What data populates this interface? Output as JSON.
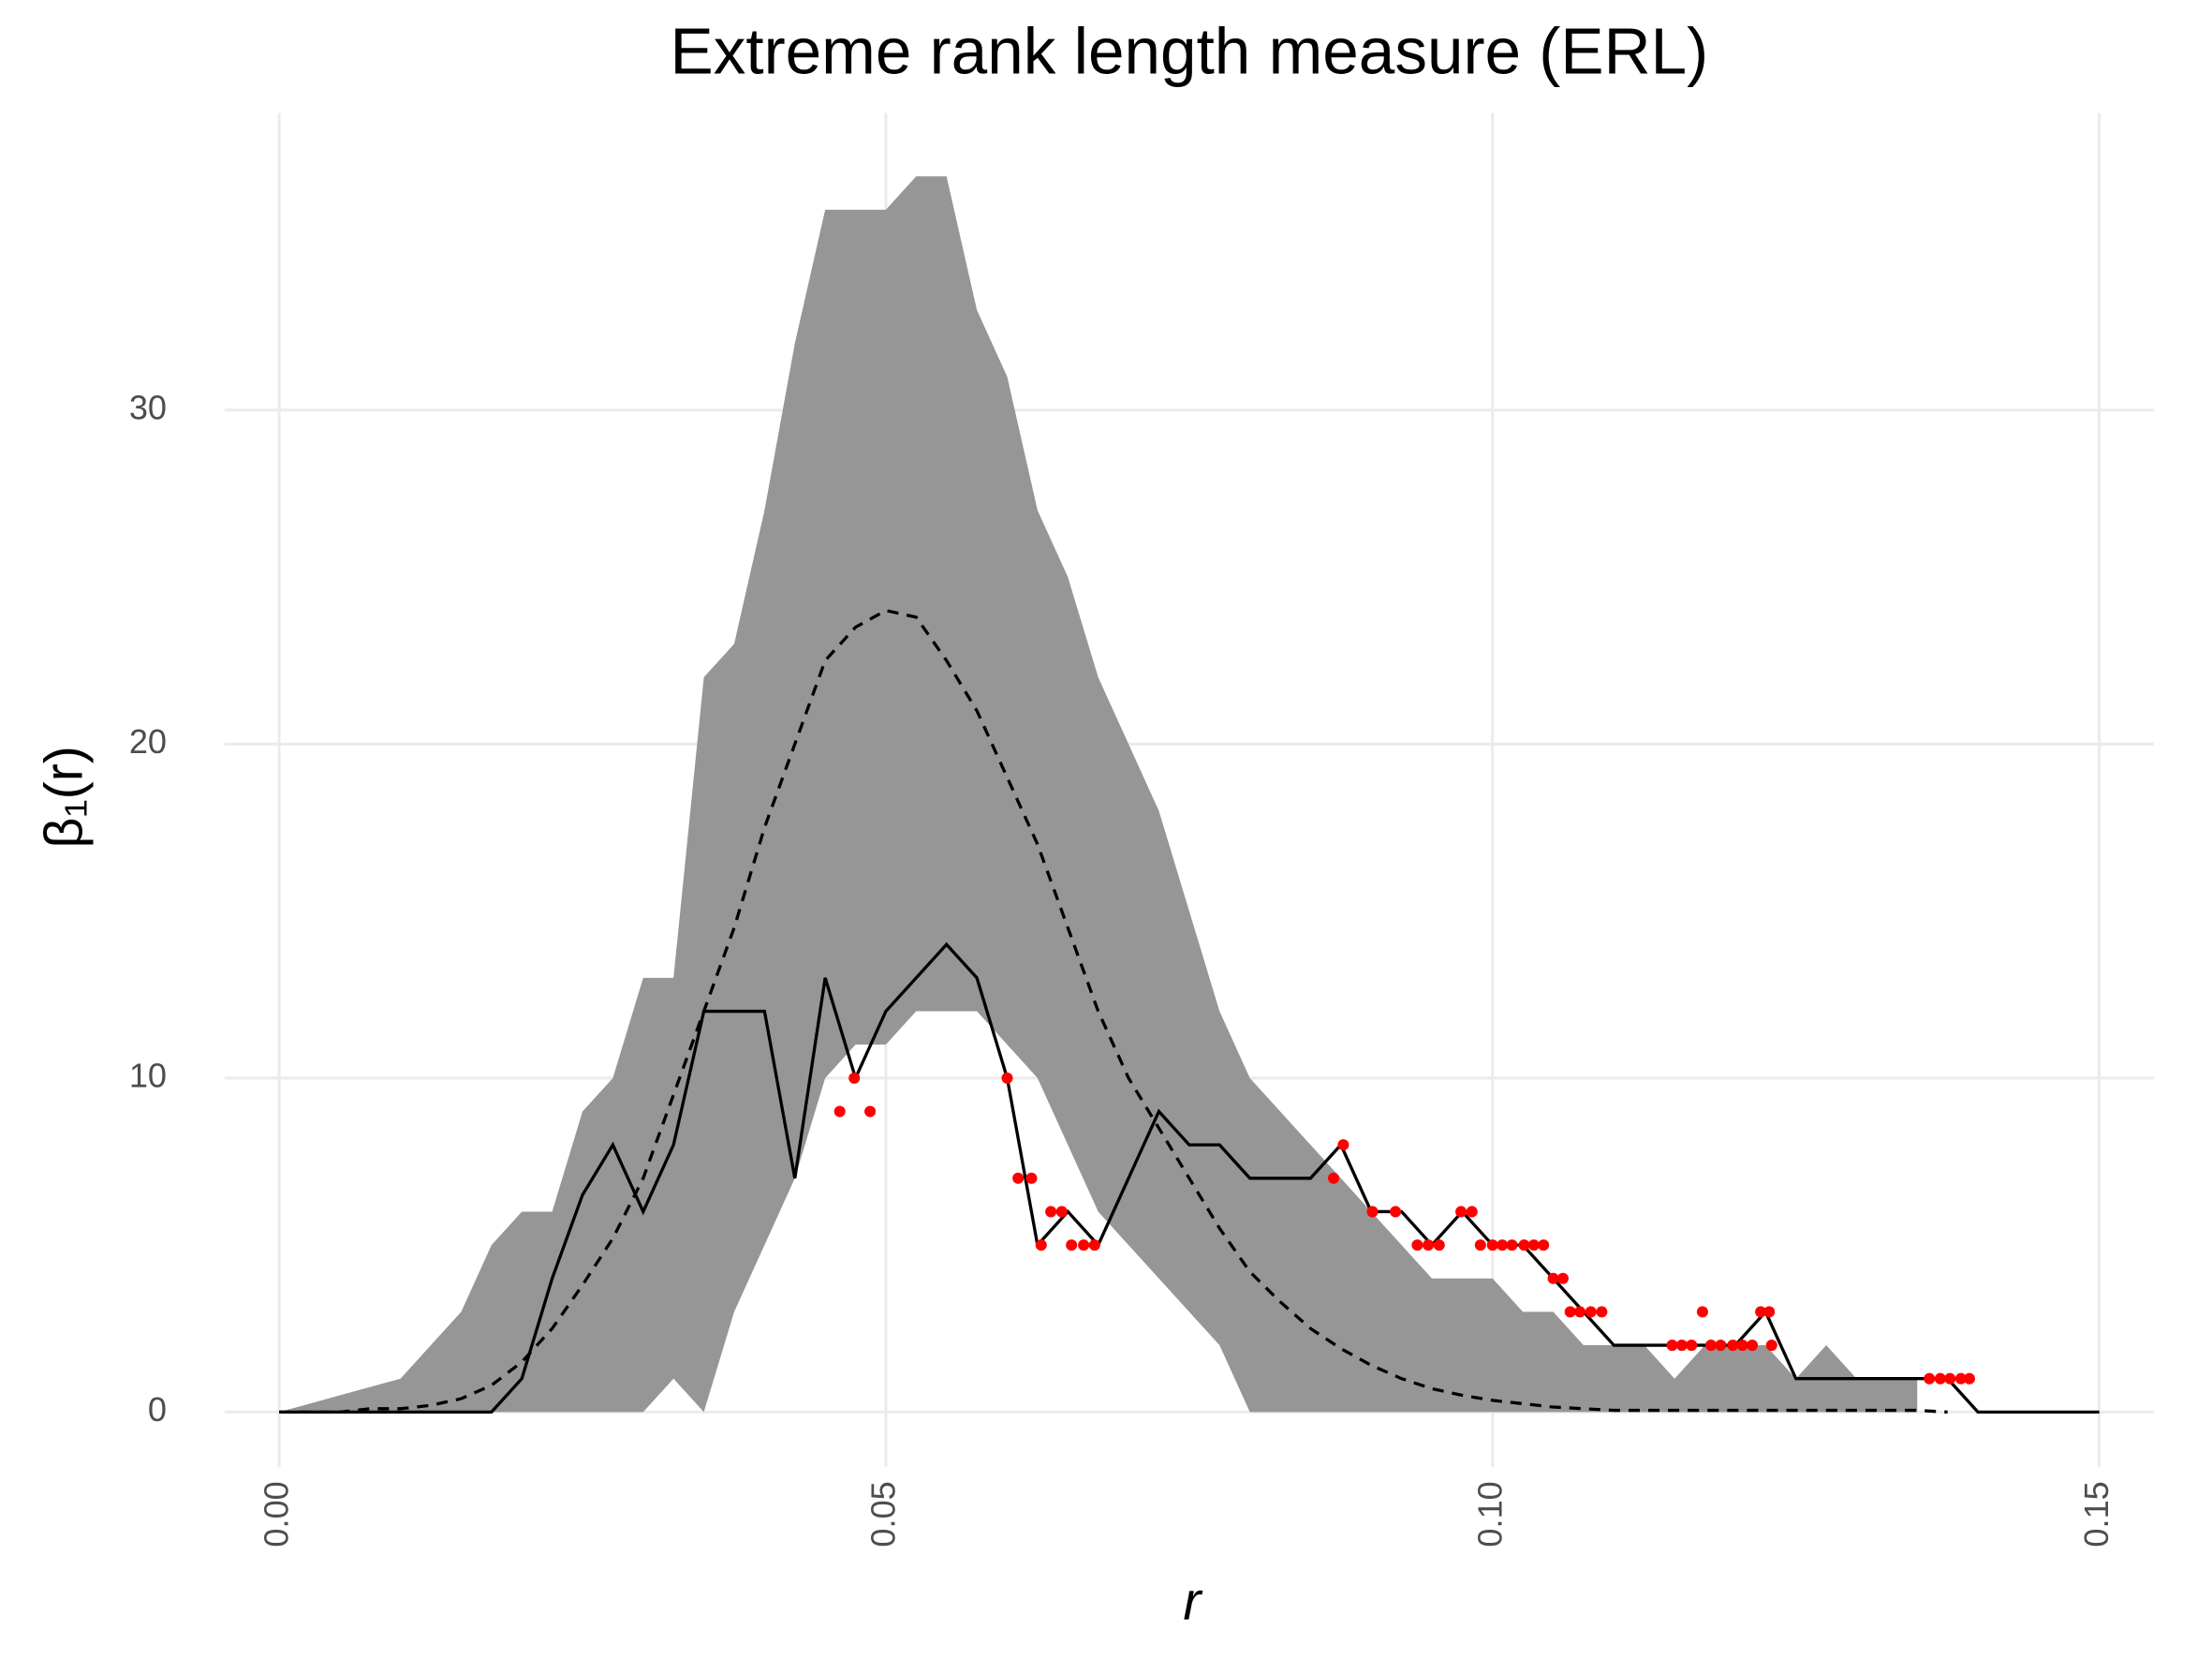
{
  "chart_data": {
    "type": "line",
    "title": "Extreme rank length measure (ERL)",
    "xlabel": "r",
    "ylabel": "β₁(r)",
    "x": [
      0,
      0.0025,
      0.005,
      0.0075,
      0.01,
      0.0125,
      0.015,
      0.0175,
      0.02,
      0.0225,
      0.025,
      0.0275,
      0.03,
      0.0325,
      0.035,
      0.0375,
      0.04,
      0.0425,
      0.045,
      0.0475,
      0.05,
      0.0525,
      0.055,
      0.0575,
      0.06,
      0.0625,
      0.065,
      0.0675,
      0.07,
      0.0725,
      0.075,
      0.0775,
      0.08,
      0.0825,
      0.085,
      0.0875,
      0.09,
      0.0925,
      0.095,
      0.0975,
      0.1,
      0.1025,
      0.105,
      0.1075,
      0.11,
      0.1125,
      0.115,
      0.1175,
      0.12,
      0.1225,
      0.125,
      0.1275,
      0.13,
      0.1325,
      0.135,
      0.1375,
      0.14,
      0.1425,
      0.145,
      0.1475,
      0.15
    ],
    "band": {
      "color": "#969696",
      "upper": [
        0,
        0.25,
        0.5,
        0.75,
        1,
        2,
        3,
        5,
        6,
        6,
        9,
        10,
        13,
        13,
        22,
        23,
        27,
        32,
        36,
        36,
        36,
        37,
        37,
        33,
        31,
        27,
        25,
        22,
        20,
        18,
        15,
        12,
        10,
        9,
        8,
        7,
        6,
        5,
        4,
        4,
        4,
        3,
        3,
        2,
        2,
        2,
        1,
        2,
        2,
        2,
        1,
        2,
        1,
        1,
        1,
        null,
        null,
        null,
        null,
        null,
        null
      ],
      "lower": [
        0,
        0,
        0,
        0,
        0,
        0,
        0,
        0,
        0,
        0,
        0,
        0,
        0,
        1,
        0,
        3,
        5,
        7,
        10,
        11,
        11,
        12,
        12,
        12,
        11,
        10,
        8,
        6,
        5,
        4,
        3,
        2,
        0,
        0,
        0,
        0,
        0,
        0,
        0,
        0,
        0,
        0,
        0,
        0,
        0,
        0,
        0,
        0,
        0,
        0,
        0,
        0,
        0,
        0,
        0,
        null,
        null,
        null,
        null,
        null,
        null
      ]
    },
    "series": [
      {
        "color": "#000000",
        "values": [
          0,
          0,
          0,
          0,
          0,
          0,
          0,
          0,
          1,
          4,
          6.5,
          8,
          6,
          8,
          12,
          12,
          12,
          7,
          13,
          10,
          12,
          13,
          14,
          13,
          10,
          5,
          6,
          5,
          7,
          9,
          8,
          8,
          7,
          7,
          7,
          8,
          6,
          6,
          5,
          6,
          5,
          5,
          4,
          3,
          2,
          2,
          2,
          2,
          2,
          3,
          1,
          1,
          1,
          1,
          1,
          1,
          0,
          0,
          0,
          0,
          0
        ]
      },
      {
        "color": "#000000",
        "dash": true,
        "values": [
          0,
          0,
          0,
          0.1,
          0.1,
          0.2,
          0.4,
          0.8,
          1.5,
          2.5,
          3.8,
          5.2,
          7,
          9.5,
          12,
          14.5,
          17.5,
          20,
          22.5,
          23.5,
          24,
          23.8,
          22.5,
          21,
          19,
          17,
          14.5,
          12,
          10,
          8.5,
          7,
          5.5,
          4.2,
          3.3,
          2.5,
          1.9,
          1.4,
          1,
          0.7,
          0.5,
          0.35,
          0.25,
          0.15,
          0.1,
          0.05,
          0.05,
          0.05,
          0.05,
          0.05,
          0.05,
          0.05,
          0.05,
          0.05,
          0.05,
          0.05,
          0,
          null,
          null,
          null,
          null,
          null
        ]
      }
    ],
    "points": {
      "color": "#ff0000",
      "x": [
        0.0462,
        0.0474,
        0.0487,
        0.06,
        0.0609,
        0.062,
        0.0628,
        0.0636,
        0.0645,
        0.0653,
        0.0663,
        0.0672,
        0.0869,
        0.0877,
        0.0901,
        0.092,
        0.0938,
        0.0947,
        0.0956,
        0.0974,
        0.0983,
        0.099,
        0.1,
        0.1008,
        0.1016,
        0.1026,
        0.1034,
        0.1042,
        0.105,
        0.1058,
        0.1064,
        0.1072,
        0.1081,
        0.109,
        0.1148,
        0.1156,
        0.1164,
        0.1173,
        0.118,
        0.1188,
        0.1198,
        0.1206,
        0.1214,
        0.1221,
        0.1228,
        0.123,
        0.136,
        0.1369,
        0.1377,
        0.1386,
        0.1393
      ],
      "y": [
        9,
        10,
        9,
        10,
        7,
        7,
        5,
        6,
        6,
        5,
        5,
        5,
        7,
        8,
        6,
        6,
        5,
        5,
        5,
        6,
        6,
        5,
        5,
        5,
        5,
        5,
        5,
        5,
        4,
        4,
        3,
        3,
        3,
        3,
        2,
        2,
        2,
        3,
        2,
        2,
        2,
        2,
        2,
        3,
        3,
        2,
        1,
        1,
        1,
        1,
        1
      ]
    },
    "xlim": [
      -0.0045,
      0.1545
    ],
    "ylim": [
      -1.65,
      38.9
    ],
    "xticks": [
      {
        "value": 0,
        "label": "0.00"
      },
      {
        "value": 0.05,
        "label": "0.05"
      },
      {
        "value": 0.1,
        "label": "0.10"
      },
      {
        "value": 0.15,
        "label": "0.15"
      }
    ],
    "yticks": [
      0,
      10,
      20,
      30
    ],
    "grid": true
  }
}
